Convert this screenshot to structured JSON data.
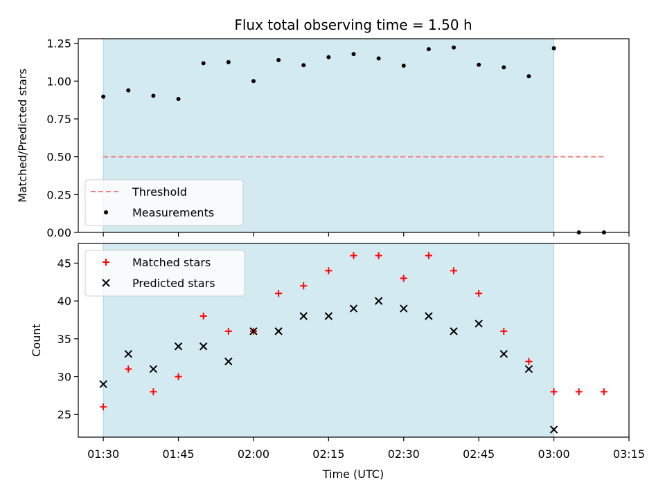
{
  "chart_data": [
    {
      "type": "scatter",
      "title": "Flux total observing time = 1.50 h",
      "ylabel": "Matched/Predicted stars",
      "ylim": [
        0,
        1.28
      ],
      "yticks": [
        "0.00",
        "0.25",
        "0.50",
        "0.75",
        "1.00",
        "1.25"
      ],
      "xlim": [
        "01:25",
        "03:15"
      ],
      "shaded_range": [
        "01:30",
        "03:00"
      ],
      "shaded_color": "#d4eaf1",
      "legend": {
        "placement": "lower-left",
        "threshold_label": "Threshold",
        "measurements_label": "Measurements"
      },
      "threshold": {
        "value": 0.5,
        "x_range": [
          "01:30",
          "03:10"
        ],
        "color": "#f08080"
      },
      "x": [
        "01:30",
        "01:35",
        "01:40",
        "01:45",
        "01:50",
        "01:55",
        "02:00",
        "02:05",
        "02:10",
        "02:15",
        "02:20",
        "02:25",
        "02:30",
        "02:35",
        "02:40",
        "02:45",
        "02:50",
        "02:55",
        "03:00",
        "03:05",
        "03:10"
      ],
      "measurements": [
        0.897,
        0.939,
        0.903,
        0.882,
        1.118,
        1.125,
        1.0,
        1.139,
        1.105,
        1.158,
        1.179,
        1.15,
        1.102,
        1.211,
        1.222,
        1.108,
        1.091,
        1.032,
        1.217,
        0.0,
        0.0
      ]
    },
    {
      "type": "scatter",
      "xlabel": "Time (UTC)",
      "ylabel": "Count",
      "ylim": [
        22,
        47.6
      ],
      "yticks": [
        "25",
        "30",
        "35",
        "40",
        "45"
      ],
      "xticks": [
        "01:30",
        "01:45",
        "02:00",
        "02:15",
        "02:30",
        "02:45",
        "03:00",
        "03:15"
      ],
      "xlim": [
        "01:25",
        "03:15"
      ],
      "shaded_range": [
        "01:30",
        "03:00"
      ],
      "legend": {
        "placement": "upper-left"
      },
      "x": [
        "01:30",
        "01:35",
        "01:40",
        "01:45",
        "01:50",
        "01:55",
        "02:00",
        "02:05",
        "02:10",
        "02:15",
        "02:20",
        "02:25",
        "02:30",
        "02:35",
        "02:40",
        "02:45",
        "02:50",
        "02:55",
        "03:00",
        "03:05",
        "03:10"
      ],
      "series": [
        {
          "name": "Matched stars",
          "marker": "plus",
          "color": "#ff0000",
          "values": [
            26,
            31,
            28,
            30,
            38,
            36,
            36,
            41,
            42,
            44,
            46,
            46,
            43,
            46,
            44,
            41,
            36,
            32,
            28,
            28,
            28
          ]
        },
        {
          "name": "Predicted stars",
          "marker": "x",
          "color": "#000000",
          "x": [
            "01:30",
            "01:35",
            "01:40",
            "01:45",
            "01:50",
            "01:55",
            "02:00",
            "02:05",
            "02:10",
            "02:15",
            "02:20",
            "02:25",
            "02:30",
            "02:35",
            "02:40",
            "02:45",
            "02:50",
            "02:55",
            "03:00"
          ],
          "values": [
            29,
            33,
            31,
            34,
            34,
            32,
            36,
            36,
            38,
            38,
            39,
            40,
            39,
            38,
            36,
            37,
            33,
            31,
            23
          ]
        }
      ]
    }
  ]
}
